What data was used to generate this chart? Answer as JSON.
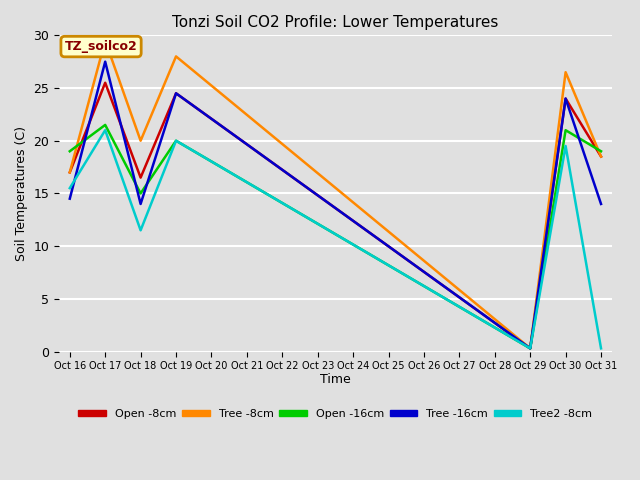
{
  "title": "Tonzi Soil CO2 Profile: Lower Temperatures",
  "xlabel": "Time",
  "ylabel": "Soil Temperatures (C)",
  "ylim": [
    0,
    30
  ],
  "watermark": "TZ_soilco2",
  "x_labels": [
    "Oct 16",
    "Oct 17",
    "Oct 18",
    "Oct 19",
    "Oct 20",
    "Oct 21",
    "Oct 22",
    "Oct 23",
    "Oct 24",
    "Oct 25",
    "Oct 26",
    "Oct 27",
    "Oct 28",
    "Oct 29",
    "Oct 30",
    "Oct 31"
  ],
  "series": [
    {
      "label": "Open -8cm",
      "color": "#cc0000",
      "data_x": [
        0,
        1,
        2,
        3,
        13,
        14,
        15
      ],
      "data_y": [
        17.0,
        25.5,
        16.5,
        24.5,
        0.3,
        24.0,
        18.5
      ]
    },
    {
      "label": "Tree -8cm",
      "color": "#ff8800",
      "data_x": [
        0,
        1,
        2,
        3,
        13,
        14,
        15
      ],
      "data_y": [
        17.0,
        29.5,
        20.0,
        28.0,
        0.3,
        26.5,
        18.5
      ]
    },
    {
      "label": "Open -16cm",
      "color": "#00cc00",
      "data_x": [
        0,
        1,
        2,
        3,
        13,
        14,
        15
      ],
      "data_y": [
        19.0,
        21.5,
        15.0,
        20.0,
        0.3,
        21.0,
        19.0
      ]
    },
    {
      "label": "Tree -16cm",
      "color": "#0000cc",
      "data_x": [
        0,
        1,
        2,
        3,
        13,
        14,
        15
      ],
      "data_y": [
        14.5,
        27.5,
        14.0,
        24.5,
        0.3,
        24.0,
        14.0
      ]
    },
    {
      "label": "Tree2 -8cm",
      "color": "#00cccc",
      "data_x": [
        0,
        1,
        2,
        3,
        13,
        14,
        15
      ],
      "data_y": [
        15.5,
        21.0,
        11.5,
        20.0,
        0.3,
        19.5,
        0.3
      ]
    }
  ]
}
